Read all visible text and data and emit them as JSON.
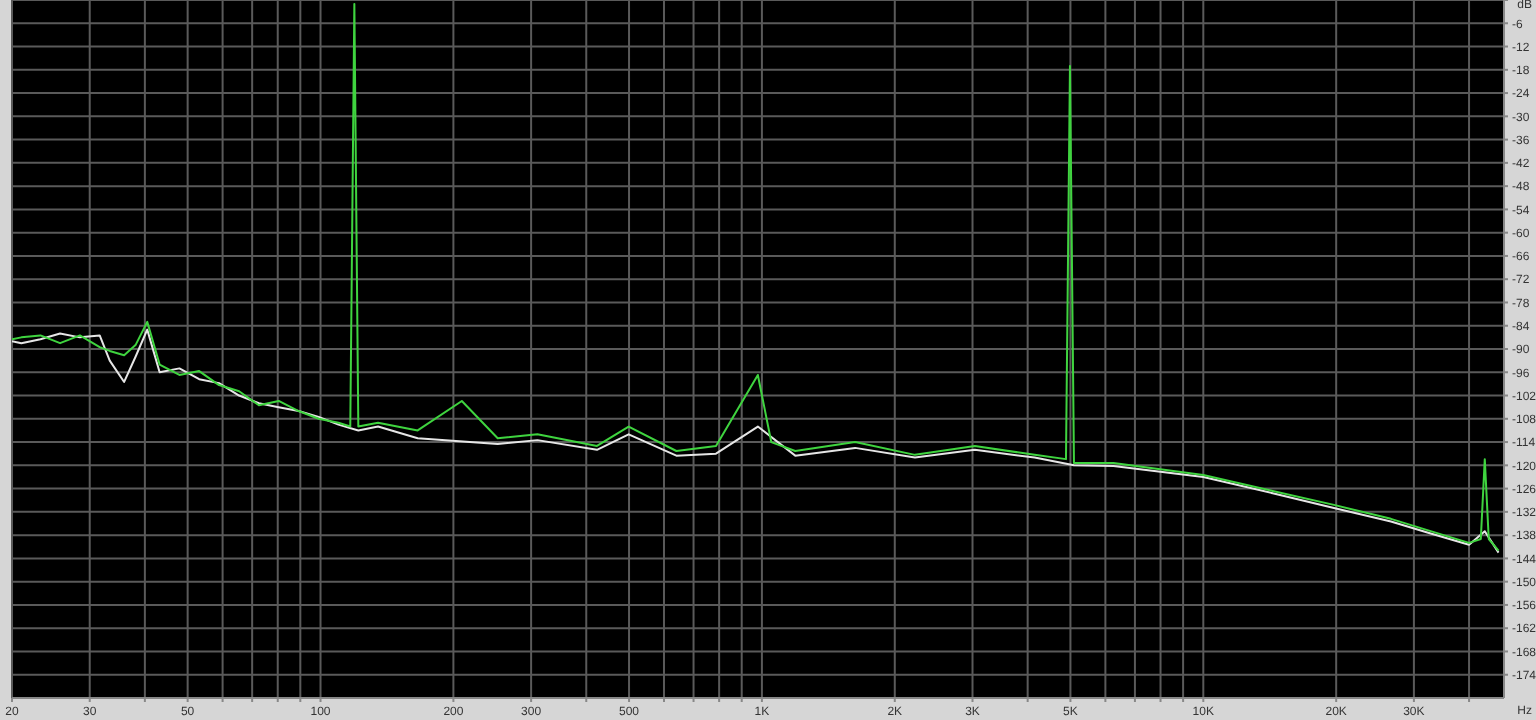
{
  "chart_data": {
    "type": "line",
    "xlabel": "Hz",
    "ylabel": "dB",
    "log": "x",
    "grid": true,
    "marker": "none",
    "line_style": "solid",
    "xlim": [
      20,
      48000
    ],
    "ylim": [
      -180,
      0
    ],
    "xticks": [
      20,
      30,
      {
        "value": 40,
        "label": null
      },
      50,
      {
        "value": 60,
        "label": null
      },
      {
        "value": 70,
        "label": null
      },
      {
        "value": 80,
        "label": null
      },
      {
        "value": 90,
        "label": null
      },
      100,
      200,
      300,
      {
        "value": 400,
        "label": null
      },
      500,
      {
        "value": 600,
        "label": null
      },
      {
        "value": 700,
        "label": null
      },
      {
        "value": 800,
        "label": null
      },
      {
        "value": 900,
        "label": null
      },
      {
        "value": 1000,
        "label": "1K"
      },
      {
        "value": 2000,
        "label": "2K"
      },
      {
        "value": 3000,
        "label": "3K"
      },
      {
        "value": 4000,
        "label": null
      },
      {
        "value": 5000,
        "label": "5K"
      },
      {
        "value": 6000,
        "label": null
      },
      {
        "value": 7000,
        "label": null
      },
      {
        "value": 8000,
        "label": null
      },
      {
        "value": 9000,
        "label": null
      },
      {
        "value": 10000,
        "label": "10K"
      },
      {
        "value": 20000,
        "label": "20K"
      },
      {
        "value": 30000,
        "label": "30K"
      },
      {
        "value": 40000,
        "label": null
      }
    ],
    "yticks": [
      {
        "value": 0,
        "label": null
      },
      -6,
      -12,
      -18,
      -24,
      -30,
      -36,
      -42,
      -48,
      -54,
      -60,
      -66,
      -72,
      -78,
      -84,
      -90,
      -96,
      -102,
      -108,
      -114,
      -120,
      -126,
      -132,
      -138,
      -144,
      -150,
      -156,
      -162,
      -168,
      -174
    ],
    "series": [
      {
        "color": "#e6e6e6",
        "x": [
          20,
          21,
          23.2,
          25.7,
          28.5,
          31.6,
          33.3,
          35.9,
          38.1,
          40.5,
          43.2,
          47.9,
          53.1,
          58.9,
          65.4,
          72.5,
          80.4,
          89.2,
          99,
          109.8,
          121.8,
          135,
          166,
          252,
          310,
          423,
          499,
          640,
          787,
          979,
          1190,
          1626,
          2222,
          3036,
          4148,
          5093,
          6259,
          10000,
          14360,
          19770,
          26610,
          32600,
          40000,
          43420,
          46650
        ],
        "values": [
          -88,
          -88.5,
          -87.5,
          -86,
          -87,
          -86.5,
          -93,
          -98.5,
          -92,
          -85,
          -96,
          -95,
          -97.8,
          -98.8,
          -102,
          -104,
          -105,
          -106,
          -107.5,
          -109.5,
          -111,
          -110,
          -113,
          -114.5,
          -113.5,
          -116,
          -112,
          -117.5,
          -117,
          -110,
          -117.5,
          -115.5,
          -118,
          -116,
          -118,
          -120,
          -120.2,
          -123,
          -127.2,
          -131,
          -134.5,
          -137.5,
          -140.5,
          -137,
          -142.5
        ]
      },
      {
        "color": "#3fd43f",
        "x": [
          20,
          21,
          23.2,
          25.7,
          28.5,
          31.6,
          33.3,
          35.9,
          38.1,
          40.5,
          43.2,
          47.9,
          53.1,
          58.9,
          65.4,
          72.5,
          80.4,
          89.2,
          99,
          109.8,
          116.8,
          119.3,
          121.8,
          135,
          166,
          209,
          252,
          310,
          423,
          499,
          640,
          787,
          979,
          1050,
          1190,
          1626,
          2222,
          3036,
          4148,
          4885,
          4988,
          5093,
          6259,
          10000,
          14360,
          19770,
          26610,
          32600,
          40000,
          42530,
          43420,
          44330,
          46650
        ],
        "values": [
          -87.5,
          -87,
          -86.5,
          -88.5,
          -86.5,
          -89.5,
          -90.5,
          -91.6,
          -89,
          -83,
          -94,
          -96.7,
          -95.7,
          -99.3,
          -100.9,
          -104.5,
          -103.4,
          -106,
          -108,
          -109,
          -110,
          -1,
          -110,
          -109,
          -111,
          -103.4,
          -113,
          -112,
          -115,
          -110,
          -116.3,
          -115,
          -96.7,
          -114,
          -116.3,
          -114,
          -117.3,
          -115,
          -117.3,
          -118.4,
          -17,
          -119.4,
          -119.4,
          -122.5,
          -126.6,
          -130.2,
          -133.8,
          -136.9,
          -140,
          -139,
          -118.4,
          -139,
          -142
        ]
      }
    ]
  }
}
